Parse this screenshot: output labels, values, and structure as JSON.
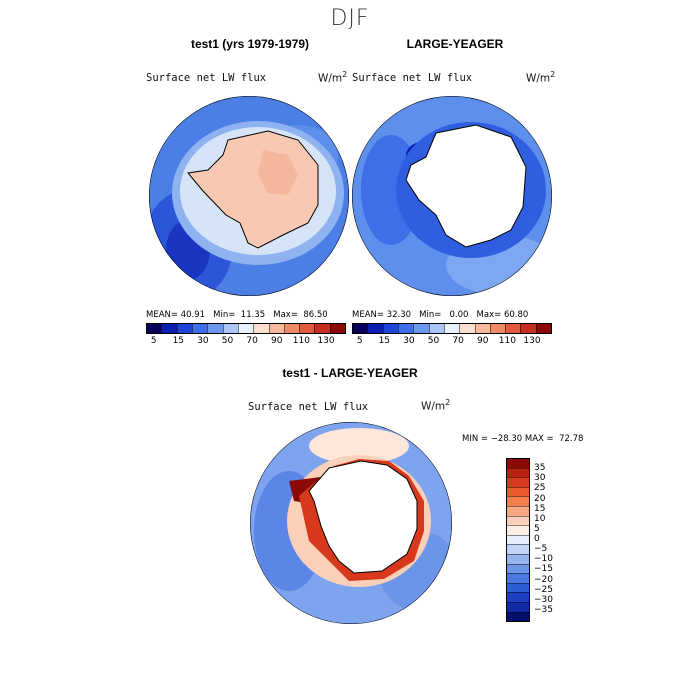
{
  "main_title": "DJF",
  "colors": {
    "abs_scale": [
      "#08005a",
      "#0a1fb0",
      "#1f45d6",
      "#3e6fe8",
      "#6b98f0",
      "#a9c6f5",
      "#e9f1fb",
      "#fbe0d2",
      "#f6b99b",
      "#ef8a66",
      "#e05a3d",
      "#c3301f",
      "#8b0a06"
    ],
    "diff_scale": [
      "#8b0a06",
      "#b8200f",
      "#d8391c",
      "#ea5a2c",
      "#f37f4e",
      "#f7a985",
      "#fbd0b9",
      "#fdeee4",
      "#e7eefb",
      "#c3d4f6",
      "#97b6ef",
      "#6d95e8",
      "#4b78e3",
      "#2e5bd6",
      "#1c3fc3",
      "#102aa5",
      "#050f6e"
    ]
  },
  "chart_data": [
    {
      "type": "polar-map",
      "panel_title": "test1 (yrs 1979-1979)",
      "variable_label": "Surface net LW flux",
      "units_label": "W/m",
      "units_exp": "2",
      "stats": {
        "mean_label": "MEAN=",
        "mean": "40.91",
        "min_label": "Min=",
        "min": "11.35",
        "max_label": "Max=",
        "max": "86.50"
      },
      "colorbar_ticks": [
        "5",
        "15",
        "30",
        "50",
        "70",
        "90",
        "110",
        "130"
      ]
    },
    {
      "type": "polar-map",
      "panel_title": "LARGE-YEAGER",
      "variable_label": "Surface net LW flux",
      "units_label": "W/m",
      "units_exp": "2",
      "stats": {
        "mean_label": "MEAN=",
        "mean": "32.30",
        "min_label": "Min=",
        "min": "0.00",
        "max_label": "Max=",
        "max": "60.80"
      },
      "colorbar_ticks": [
        "5",
        "15",
        "30",
        "50",
        "70",
        "90",
        "110",
        "130"
      ]
    },
    {
      "type": "polar-map-difference",
      "panel_title": "test1 - LARGE-YEAGER",
      "variable_label": "Surface net LW flux",
      "units_label": "W/m",
      "units_exp": "2",
      "minmax_text": "MIN = −28.30 MAX =  72.78",
      "colorbar_ticks": [
        "35",
        "30",
        "25",
        "20",
        "15",
        "10",
        "5",
        "0",
        "−5",
        "−10",
        "−15",
        "−20",
        "−25",
        "−30",
        "−35"
      ]
    }
  ]
}
